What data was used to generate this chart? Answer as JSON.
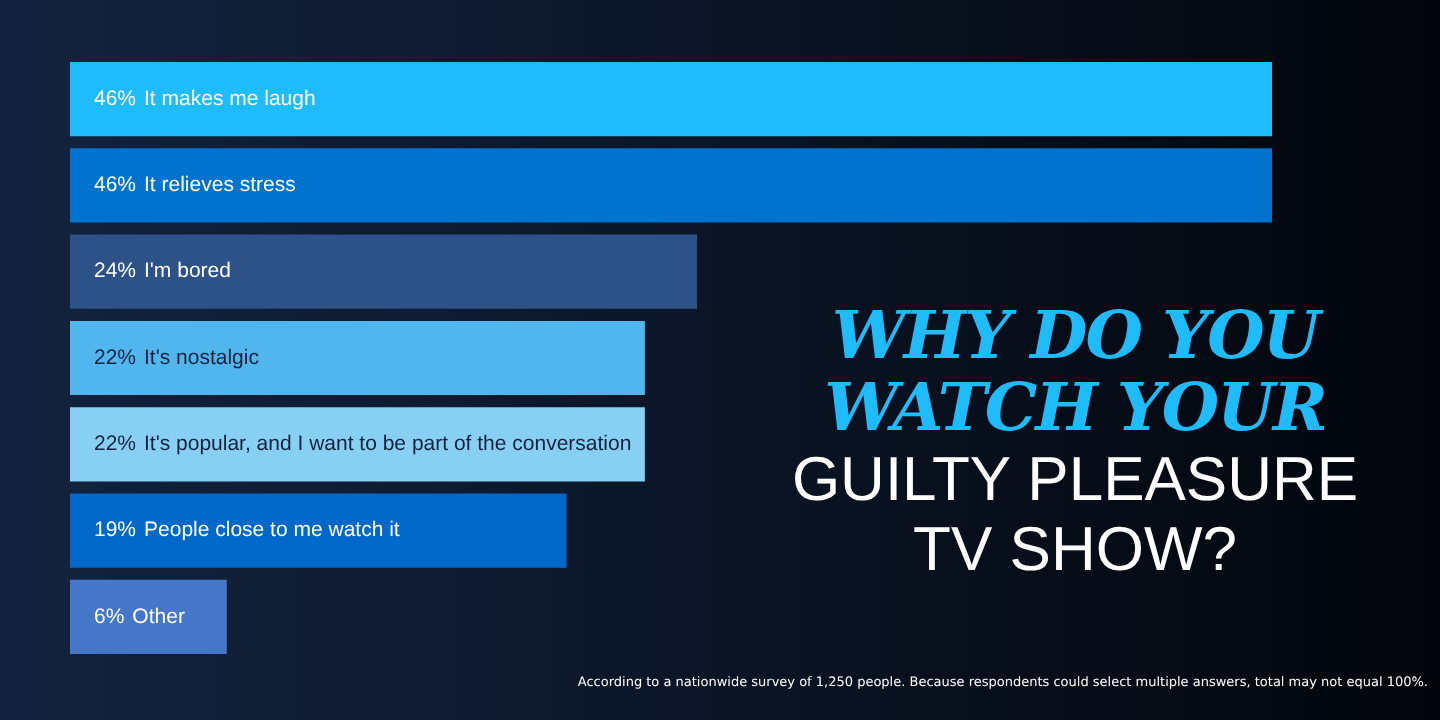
{
  "chart_data": {
    "type": "bar",
    "orientation": "horizontal",
    "title": "WHY DO YOU WATCH YOUR",
    "subtitle": "GUILTY PLEASURE TV SHOW?",
    "categories": [
      "It makes me laugh",
      "It relieves stress",
      "I'm bored",
      "It's nostalgic",
      "It's popular, and I want to be part of the conversation",
      "People close to me watch it",
      "Other"
    ],
    "values": [
      46,
      46,
      24,
      22,
      22,
      19,
      6
    ],
    "value_labels": [
      "46%",
      "46%",
      "24%",
      "22%",
      "22%",
      "19%",
      "6%"
    ],
    "colors": [
      "#1fbcfb",
      "#0073cf",
      "#2d5288",
      "#52b6ee",
      "#88d0f3",
      "#0068c8",
      "#4477c8"
    ],
    "legend": false,
    "annotations": [
      "According to a nationwide survey of 1,250 people. Because respondents could select multiple answers, total may not equal 100%."
    ]
  }
}
